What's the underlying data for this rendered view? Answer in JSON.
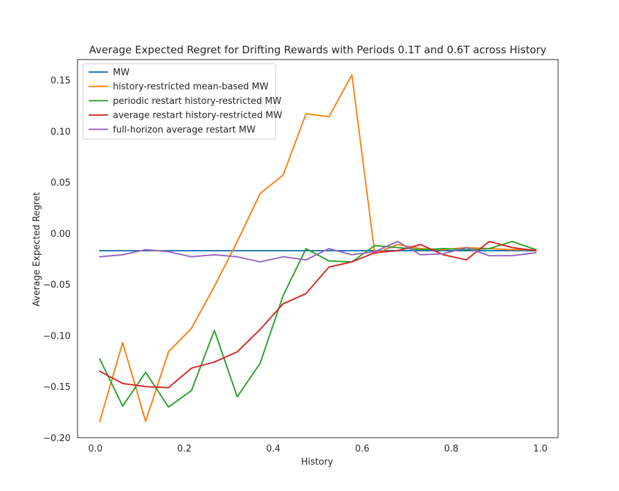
{
  "chart_data": {
    "type": "line",
    "title": "Average Expected Regret for Drifting Rewards with Periods 0.1T and 0.6T across History",
    "xlabel": "History",
    "ylabel": "Average Expected Regret",
    "xlim": [
      -0.04,
      1.04
    ],
    "ylim": [
      -0.2,
      0.17
    ],
    "xticks": [
      0.0,
      0.2,
      0.4,
      0.6,
      0.8,
      1.0
    ],
    "xtick_labels": [
      "0.0",
      "0.2",
      "0.4",
      "0.6",
      "0.8",
      "1.0"
    ],
    "yticks": [
      0.15,
      0.1,
      0.05,
      0.0,
      -0.05,
      -0.1,
      -0.15,
      -0.2
    ],
    "ytick_labels": [
      "0.15",
      "0.10",
      "0.05",
      "0.00",
      "−0.05",
      "−0.10",
      "−0.15",
      "−0.20"
    ],
    "grid": false,
    "legend_position": "upper-left",
    "x": [
      0.01,
      0.0615,
      0.113,
      0.1645,
      0.216,
      0.2675,
      0.319,
      0.3705,
      0.422,
      0.4735,
      0.525,
      0.5765,
      0.628,
      0.6795,
      0.731,
      0.7825,
      0.834,
      0.8855,
      0.937,
      0.99
    ],
    "series": [
      {
        "name": "MW",
        "color": "#1f77b4",
        "values": [
          -0.017,
          -0.017,
          -0.017,
          -0.017,
          -0.017,
          -0.017,
          -0.017,
          -0.017,
          -0.017,
          -0.017,
          -0.017,
          -0.017,
          -0.017,
          -0.017,
          -0.017,
          -0.017,
          -0.017,
          -0.017,
          -0.017,
          -0.017
        ]
      },
      {
        "name": "history-restricted mean-based MW",
        "color": "#ff7f0e",
        "values": [
          -0.184,
          -0.107,
          -0.184,
          -0.116,
          -0.093,
          -0.052,
          -0.008,
          0.039,
          0.057,
          0.117,
          0.114,
          0.155,
          -0.02,
          -0.011,
          -0.015,
          -0.016,
          -0.014,
          -0.015,
          -0.016,
          -0.016
        ]
      },
      {
        "name": "periodic restart history-restricted MW",
        "color": "#2ca02c",
        "values": [
          -0.123,
          -0.169,
          -0.136,
          -0.17,
          -0.154,
          -0.095,
          -0.16,
          -0.127,
          -0.061,
          -0.015,
          -0.027,
          -0.028,
          -0.012,
          -0.014,
          -0.016,
          -0.015,
          -0.016,
          -0.015,
          -0.008,
          -0.016
        ]
      },
      {
        "name": "average restart history-restricted MW",
        "color": "#d62728",
        "values": [
          -0.135,
          -0.147,
          -0.15,
          -0.151,
          -0.132,
          -0.126,
          -0.116,
          -0.094,
          -0.069,
          -0.059,
          -0.033,
          -0.028,
          -0.019,
          -0.017,
          -0.011,
          -0.021,
          -0.026,
          -0.008,
          -0.014,
          -0.017
        ]
      },
      {
        "name": "full-horizon average restart MW",
        "color": "#9467bd",
        "values": [
          -0.023,
          -0.021,
          -0.016,
          -0.018,
          -0.023,
          -0.021,
          -0.023,
          -0.028,
          -0.023,
          -0.026,
          -0.015,
          -0.021,
          -0.018,
          -0.008,
          -0.021,
          -0.02,
          -0.014,
          -0.022,
          -0.022,
          -0.019
        ]
      }
    ]
  }
}
